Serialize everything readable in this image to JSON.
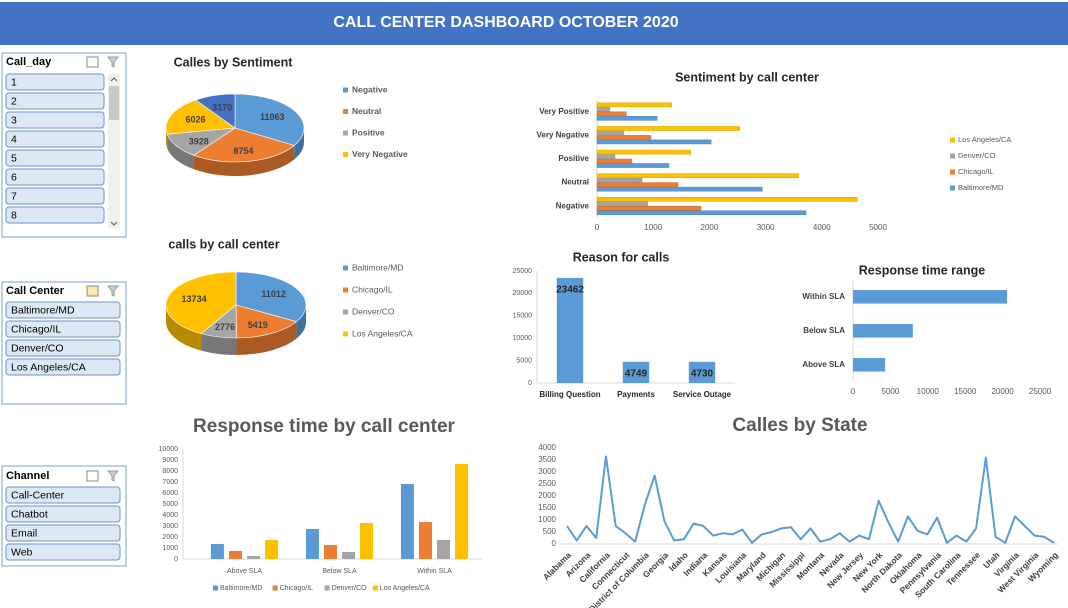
{
  "header": {
    "title": "CALL CENTER DASHBOARD OCTOBER 2020"
  },
  "slicers": [
    {
      "title": "Call_day",
      "items": [
        "1",
        "2",
        "3",
        "4",
        "5",
        "6",
        "7",
        "8"
      ]
    },
    {
      "title": "Call Center",
      "items": [
        "Baltimore/MD",
        "Chicago/IL",
        "Denver/CO",
        "Los Angeles/CA"
      ]
    },
    {
      "title": "Channel",
      "items": [
        "Call-Center",
        "Chatbot",
        "Email",
        "Web"
      ]
    }
  ],
  "chart_data": [
    {
      "type": "pie",
      "title": "Calles by Sentiment",
      "categories": [
        "Negative",
        "Neutral",
        "Positive",
        "Very Negative",
        null
      ],
      "values": [
        11063,
        8754,
        3928,
        6026,
        3170
      ],
      "colors": [
        "#5b9bd5",
        "#ed7d31",
        "#a5a5a5",
        "#ffc000",
        "#4472c4"
      ]
    },
    {
      "type": "barh",
      "title": "Sentiment by call center",
      "categories": [
        "Negative",
        "Neutral",
        "Positive",
        "Very Negative",
        "Very Positive"
      ],
      "series": [
        {
          "name": "Baltimore/MD",
          "color": "#5b9bd5",
          "values": [
            3720,
            2940,
            1280,
            2030,
            1070
          ]
        },
        {
          "name": "Chicago/IL",
          "color": "#ed7d31",
          "values": [
            1850,
            1440,
            620,
            960,
            520
          ]
        },
        {
          "name": "Denver/CO",
          "color": "#a5a5a5",
          "values": [
            900,
            800,
            320,
            480,
            230
          ]
        },
        {
          "name": "Los Angeles/CA",
          "color": "#ffc000",
          "values": [
            4630,
            3590,
            1670,
            2540,
            1330
          ]
        }
      ],
      "xlim": [
        0,
        5000
      ],
      "xticks": [
        0,
        1000,
        2000,
        3000,
        4000,
        5000
      ],
      "legend": "right"
    },
    {
      "type": "pie",
      "title": "calls by call center",
      "categories": [
        "Baltimore/MD",
        "Chicago/IL",
        "Denver/CO",
        "Los Angeles/CA"
      ],
      "values": [
        11012,
        5419,
        2776,
        13734
      ],
      "colors": [
        "#5b9bd5",
        "#ed7d31",
        "#a5a5a5",
        "#ffc000"
      ]
    },
    {
      "type": "bar",
      "title": "Reason for calls",
      "categories": [
        "Billing Question",
        "Payments",
        "Service Outage"
      ],
      "values": [
        23462,
        4749,
        4730
      ],
      "color": "#5b9bd5",
      "ylim": [
        0,
        25000
      ],
      "yticks": [
        0,
        5000,
        10000,
        15000,
        20000,
        25000
      ],
      "data_labels": true
    },
    {
      "type": "barh",
      "title": "Response time range",
      "categories": [
        "Above SLA",
        "Below SLA",
        "Within SLA"
      ],
      "values": [
        4300,
        8000,
        20600
      ],
      "color": "#5b9bd5",
      "xlim": [
        0,
        25000
      ],
      "xticks": [
        0,
        5000,
        10000,
        15000,
        20000,
        25000
      ]
    },
    {
      "type": "bar",
      "title": "Response time by call center",
      "categories": [
        "Above SLA",
        "Below SLA",
        "Within SLA"
      ],
      "series": [
        {
          "name": "Baltimore/MD",
          "color": "#5b9bd5",
          "values": [
            1360,
            2730,
            6820
          ]
        },
        {
          "name": "Chicago/IL",
          "color": "#ed7d31",
          "values": [
            730,
            1270,
            3360
          ]
        },
        {
          "name": "Denver/CO",
          "color": "#a5a5a5",
          "values": [
            270,
            640,
            1730
          ]
        },
        {
          "name": "Los Angeles/CA",
          "color": "#ffc000",
          "values": [
            1730,
            3270,
            8640
          ]
        }
      ],
      "ylim": [
        0,
        10000
      ],
      "yticks": [
        0,
        1000,
        2000,
        3000,
        4000,
        5000,
        6000,
        7000,
        8000,
        9000,
        10000
      ],
      "legend": "bottom"
    },
    {
      "type": "line",
      "title": "Calles by State",
      "color": "#5b9bd5",
      "categories": [
        "Alabama",
        null,
        "Arizona",
        null,
        "California",
        null,
        "Connecticut",
        null,
        "District of Columbia",
        null,
        "Georgia",
        null,
        "Idaho",
        null,
        "Indiana",
        null,
        "Kansas",
        null,
        "Louisiana",
        null,
        "Maryland",
        null,
        "Michigan",
        null,
        "Mississippi",
        null,
        "Montana",
        null,
        "Nevada",
        null,
        "New Jersey",
        null,
        "New York",
        null,
        "North Dakota",
        null,
        "Oklahoma",
        null,
        "Pennsylvania",
        null,
        "South Carolina",
        null,
        "Tennessee",
        null,
        "Utah",
        null,
        "Virginia",
        null,
        "West Virginia",
        null,
        "Wyoming"
      ],
      "values": [
        750,
        150,
        750,
        250,
        3650,
        750,
        450,
        100,
        1650,
        2850,
        950,
        150,
        200,
        850,
        750,
        350,
        450,
        400,
        600,
        50,
        400,
        500,
        650,
        700,
        200,
        650,
        100,
        200,
        450,
        100,
        350,
        200,
        1800,
        900,
        100,
        1150,
        550,
        400,
        1100,
        50,
        350,
        100,
        650,
        3600,
        300,
        50,
        1150,
        750,
        350,
        300,
        50
      ],
      "ylim": [
        0,
        4000
      ],
      "yticks": [
        0,
        500,
        1000,
        1500,
        2000,
        2500,
        3000,
        3500,
        4000
      ]
    }
  ]
}
